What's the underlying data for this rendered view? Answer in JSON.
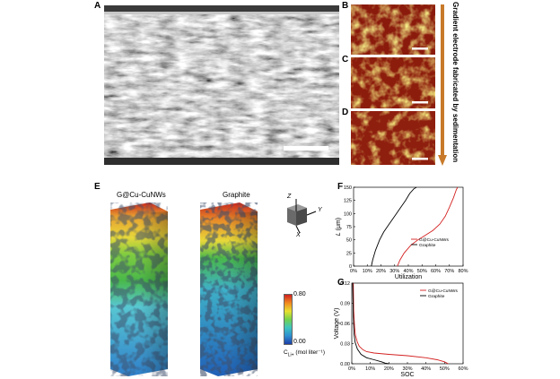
{
  "panels": {
    "A": "A",
    "B": "B",
    "C": "C",
    "D": "D",
    "E": "E",
    "F": "F",
    "G": "G"
  },
  "side_caption": "Gradient electrode fabricated by sedimentation",
  "panel_e": {
    "title_left": "G@Cu-CuNWs",
    "title_right": "Graphite",
    "axes": {
      "x": "X",
      "y": "Y",
      "z": "Z"
    },
    "colorbar": {
      "max": "0.80",
      "min": "0.00",
      "label": "C",
      "label_sub": "Li+",
      "label_units": "(mol liter⁻¹)",
      "colors": [
        "#1d3fa8",
        "#2f8fd0",
        "#3fc5c0",
        "#74d24a",
        "#e8e030",
        "#f08a20",
        "#d02020"
      ]
    },
    "colors": {
      "red": "#c8281e",
      "yellow": "#e8d83a",
      "green": "#49b84a",
      "cyan": "#58c7d2",
      "blue": "#2f7fca"
    }
  },
  "chart_data": [
    {
      "panel": "F",
      "type": "line",
      "xlabel": "Utilization",
      "ylabel": "L (μm)",
      "ylabel_main": "L",
      "ylabel_unit": "(μm)",
      "xlim": [
        0,
        80
      ],
      "ylim": [
        0,
        150
      ],
      "x_ticks": [
        "0%",
        "10%",
        "20%",
        "30%",
        "40%",
        "50%",
        "60%",
        "70%",
        "80%"
      ],
      "y_ticks": [
        "0",
        "25",
        "50",
        "75",
        "100",
        "125",
        "150"
      ],
      "legend": "right",
      "series": [
        {
          "name": "G@Cu-CuNWs",
          "color": "#d42020",
          "x": [
            32,
            34,
            37,
            42,
            47,
            52,
            58,
            63,
            67,
            70,
            73,
            75,
            76
          ],
          "y": [
            0,
            12,
            25,
            40,
            50,
            58,
            68,
            80,
            95,
            112,
            130,
            145,
            150
          ]
        },
        {
          "name": "Graphite",
          "color": "#000000",
          "x": [
            13,
            14,
            16,
            19,
            22,
            26,
            30,
            34,
            38,
            41,
            44,
            46
          ],
          "y": [
            0,
            12,
            30,
            50,
            65,
            80,
            95,
            110,
            125,
            138,
            147,
            150
          ]
        }
      ]
    },
    {
      "panel": "G",
      "type": "line",
      "xlabel": "SOC",
      "ylabel": "Voltage (V)",
      "xlim": [
        0,
        60
      ],
      "ylim": [
        0,
        0.12
      ],
      "x_ticks": [
        "0%",
        "10%",
        "20%",
        "30%",
        "40%",
        "50%",
        "60%"
      ],
      "y_ticks": [
        "0.00",
        "0.03",
        "0.06",
        "0.09",
        "0.12"
      ],
      "legend": "top-right",
      "series": [
        {
          "name": "G@Cu-CuNWs",
          "color": "#d42020",
          "x": [
            0.8,
            1,
            1.5,
            2,
            3,
            4,
            6,
            8,
            12,
            20,
            30,
            40,
            46,
            50,
            52
          ],
          "y": [
            0.12,
            0.08,
            0.055,
            0.042,
            0.032,
            0.026,
            0.021,
            0.018,
            0.016,
            0.014,
            0.012,
            0.009,
            0.006,
            0.003,
            0.0
          ]
        },
        {
          "name": "Graphite",
          "color": "#000000",
          "x": [
            0.5,
            0.8,
            1.2,
            1.8,
            3,
            5,
            8,
            12,
            16,
            18,
            20
          ],
          "y": [
            0.12,
            0.07,
            0.045,
            0.032,
            0.022,
            0.014,
            0.009,
            0.006,
            0.003,
            0.001,
            0.0
          ]
        }
      ]
    }
  ]
}
